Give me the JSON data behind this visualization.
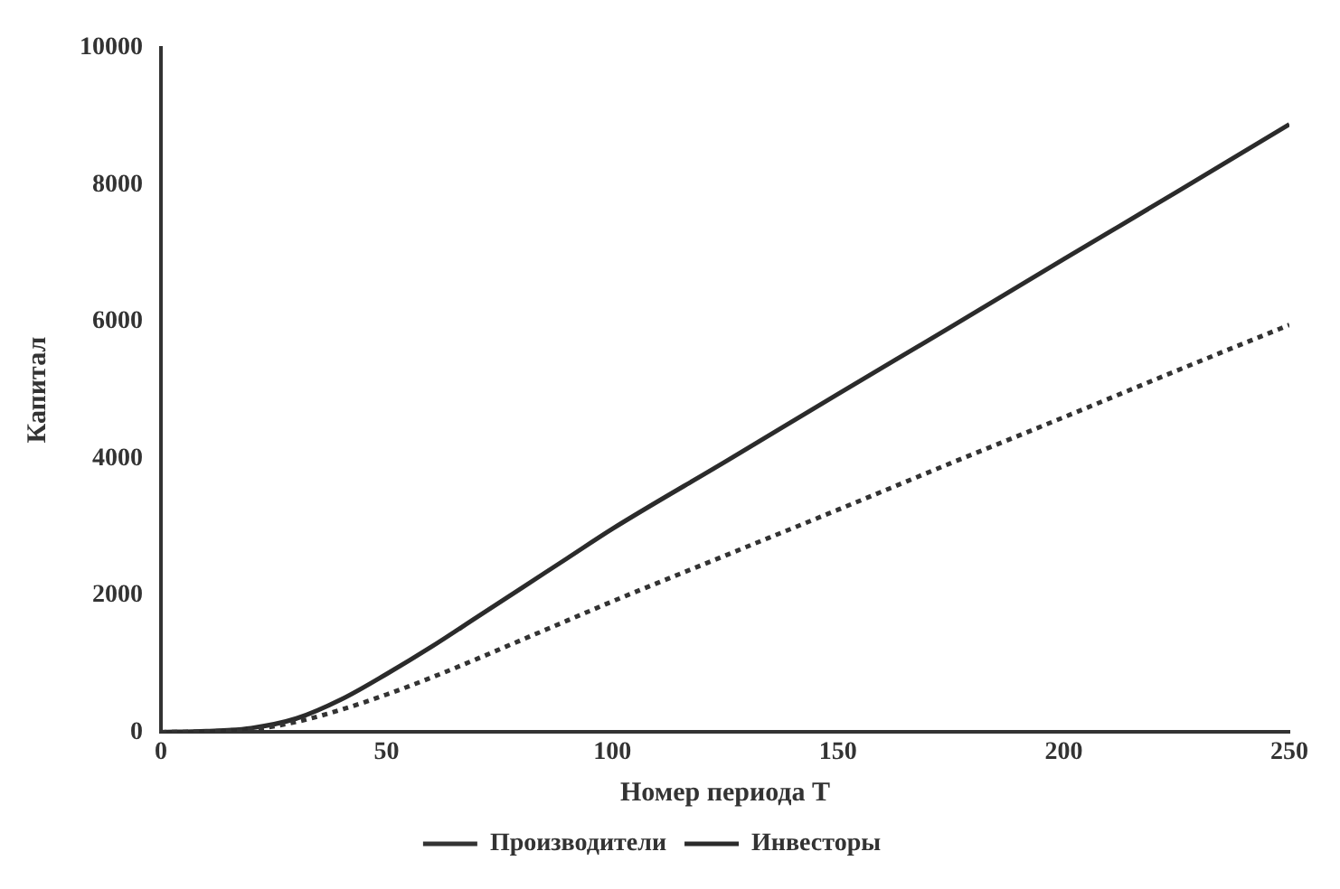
{
  "chart_data": {
    "type": "line",
    "xlabel": "Номер периода T",
    "ylabel": "Капитал",
    "x": [
      0,
      10,
      20,
      30,
      40,
      50,
      60,
      70,
      80,
      90,
      100,
      125,
      150,
      175,
      200,
      225,
      250
    ],
    "series": [
      {
        "name": "Производители",
        "color": "#333333",
        "line_style": "dotted",
        "values": [
          0,
          10,
          40,
          150,
          330,
          550,
          800,
          1070,
          1350,
          1630,
          1910,
          2580,
          3250,
          3930,
          4600,
          5280,
          5950
        ]
      },
      {
        "name": "Инвесторы",
        "color": "#2b2b2b",
        "line_style": "solid",
        "values": [
          0,
          15,
          60,
          200,
          480,
          850,
          1250,
          1680,
          2110,
          2540,
          2970,
          3950,
          4940,
          5920,
          6910,
          7890,
          8880
        ]
      }
    ],
    "xlim": [
      0,
      250
    ],
    "xticks": [
      0,
      50,
      100,
      150,
      200,
      250
    ],
    "ylim": [
      0,
      10000
    ],
    "yticks": [
      0,
      2000,
      4000,
      6000,
      8000,
      10000
    ],
    "grid": false,
    "legend": "bottom",
    "marker": "none"
  }
}
